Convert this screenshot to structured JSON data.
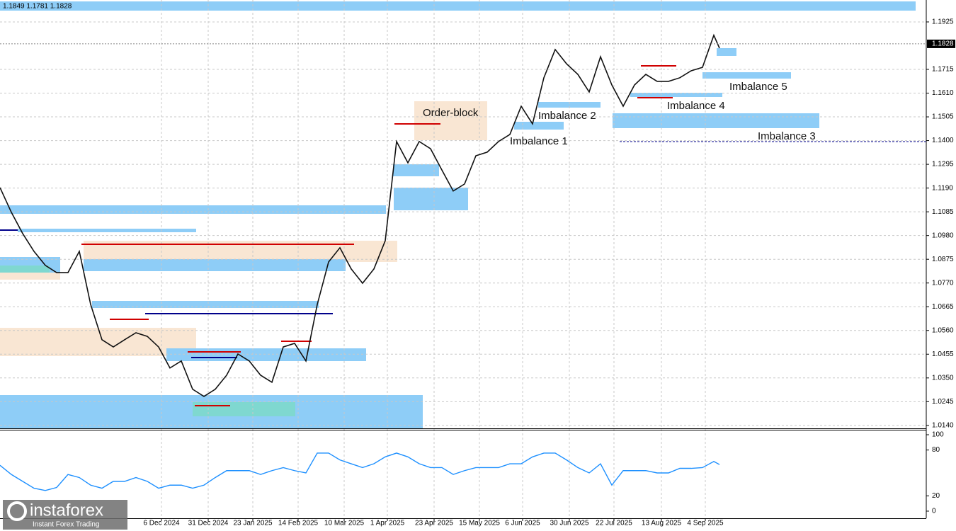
{
  "header": "1.1849 1.1781 1.1828",
  "watermark": {
    "brand": "instaforex",
    "tagline": "Instant Forex Trading"
  },
  "chart_data": [
    {
      "type": "line",
      "current_price": 1.1828,
      "current_price_label": "1.1828",
      "annotations": [
        "Order-block",
        "Imbalance 1",
        "Imbalance 2",
        "Imbalance 3",
        "Imbalance 4",
        "Imbalance 5"
      ],
      "x": [
        0,
        4,
        8,
        12,
        16,
        20,
        24,
        28,
        32,
        36,
        40,
        44,
        48,
        52,
        56,
        60,
        64,
        68,
        72,
        76,
        80,
        84,
        88,
        92,
        96,
        100,
        104,
        108,
        112,
        116,
        120,
        124,
        128,
        132,
        136,
        140,
        144,
        148,
        152,
        156,
        160,
        164,
        168,
        172,
        176,
        180,
        184,
        188,
        192,
        196,
        200,
        204,
        208,
        212,
        216,
        220,
        224,
        228,
        232,
        236,
        240,
        244,
        248,
        252,
        254
      ],
      "series": [
        {
          "color": "#111111",
          "values": [
            1.1192,
            1.1083,
            1.0989,
            1.091,
            1.0848,
            1.0816,
            1.0816,
            1.091,
            1.0675,
            1.0519,
            1.0487,
            1.0519,
            1.055,
            1.0534,
            1.0487,
            1.0394,
            1.0425,
            1.03,
            1.0268,
            1.03,
            1.0362,
            1.0456,
            1.0425,
            1.0362,
            1.0331,
            1.0487,
            1.0503,
            1.0425,
            1.0675,
            1.0863,
            1.0926,
            1.0832,
            1.0769,
            1.0832,
            1.0957,
            1.1396,
            1.1302,
            1.1396,
            1.1364,
            1.127,
            1.1177,
            1.1208,
            1.1333,
            1.1349,
            1.1396,
            1.1427,
            1.1552,
            1.1474,
            1.1678,
            1.1803,
            1.174,
            1.1693,
            1.1615,
            1.1771,
            1.1646,
            1.1552,
            1.1646,
            1.1693,
            1.1662,
            1.1662,
            1.1678,
            1.1709,
            1.1724,
            1.1866,
            1.1809
          ]
        }
      ],
      "xlim": [
        0,
        327
      ],
      "xticks": [
        {
          "value": 57,
          "label": "6 Dec 2024"
        },
        {
          "value": 73.5,
          "label": "31 Dec 2024"
        },
        {
          "value": 89.25,
          "label": "23 Jan 2025"
        },
        {
          "value": 105.25,
          "label": "14 Feb 2025"
        },
        {
          "value": 121.5,
          "label": "10 Mar 2025"
        },
        {
          "value": 136.75,
          "label": "1 Apr 2025"
        },
        {
          "value": 153.25,
          "label": "23 Apr 2025"
        },
        {
          "value": 169.25,
          "label": "15 May 2025"
        },
        {
          "value": 184.5,
          "label": "6 Jun 2025"
        },
        {
          "value": 201,
          "label": "30 Jun 2025"
        },
        {
          "value": 216.75,
          "label": "22 Jul 2025"
        },
        {
          "value": 233.5,
          "label": "13 Aug 2025"
        },
        {
          "value": 249,
          "label": "4 Sep 2025"
        }
      ],
      "ylim": [
        1.0127,
        1.2022
      ],
      "yticks": [
        1.1925,
        1.1715,
        {
          "value": 1.161,
          "label": "1.1610"
        },
        1.1505,
        {
          "value": 1.14,
          "label": "1.1400"
        },
        1.1295,
        {
          "value": 1.119,
          "label": "1.1190"
        },
        1.1085,
        {
          "value": 1.098,
          "label": "1.0980"
        },
        1.0875,
        {
          "value": 1.077,
          "label": "1.0770"
        },
        1.0665,
        {
          "value": 1.056,
          "label": "1.0560"
        },
        1.0455,
        {
          "value": 1.035,
          "label": "1.0350"
        },
        1.0245,
        {
          "value": 1.014,
          "label": "1.0140"
        }
      ],
      "grid": true
    },
    {
      "type": "line",
      "x": [
        0,
        4,
        8,
        12,
        16,
        20,
        24,
        28,
        32,
        36,
        40,
        44,
        48,
        52,
        56,
        60,
        64,
        68,
        72,
        76,
        80,
        84,
        88,
        92,
        96,
        100,
        104,
        108,
        112,
        116,
        120,
        124,
        128,
        132,
        136,
        140,
        144,
        148,
        152,
        156,
        160,
        164,
        168,
        172,
        176,
        180,
        184,
        188,
        192,
        196,
        200,
        204,
        208,
        212,
        216,
        220,
        224,
        228,
        232,
        236,
        240,
        244,
        248,
        252,
        254
      ],
      "series": [
        {
          "color": "#1e90ff",
          "values": [
            60,
            48,
            39,
            30,
            27,
            31,
            48,
            44,
            34,
            30,
            39,
            39,
            44,
            39,
            30,
            34,
            34,
            30,
            34,
            44,
            53,
            53,
            53,
            48,
            53,
            57,
            53,
            50,
            76,
            76,
            67,
            62,
            57,
            62,
            71,
            76,
            71,
            62,
            57,
            57,
            48,
            53,
            57,
            57,
            57,
            62,
            62,
            71,
            76,
            76,
            67,
            57,
            50,
            62,
            34,
            53,
            53,
            53,
            50,
            50,
            56,
            56,
            57,
            65,
            61
          ]
        }
      ],
      "xlim": [
        0,
        327
      ],
      "ylim": [
        -9.3,
        106.5
      ],
      "yticks": [
        100,
        80,
        20,
        0
      ]
    }
  ]
}
